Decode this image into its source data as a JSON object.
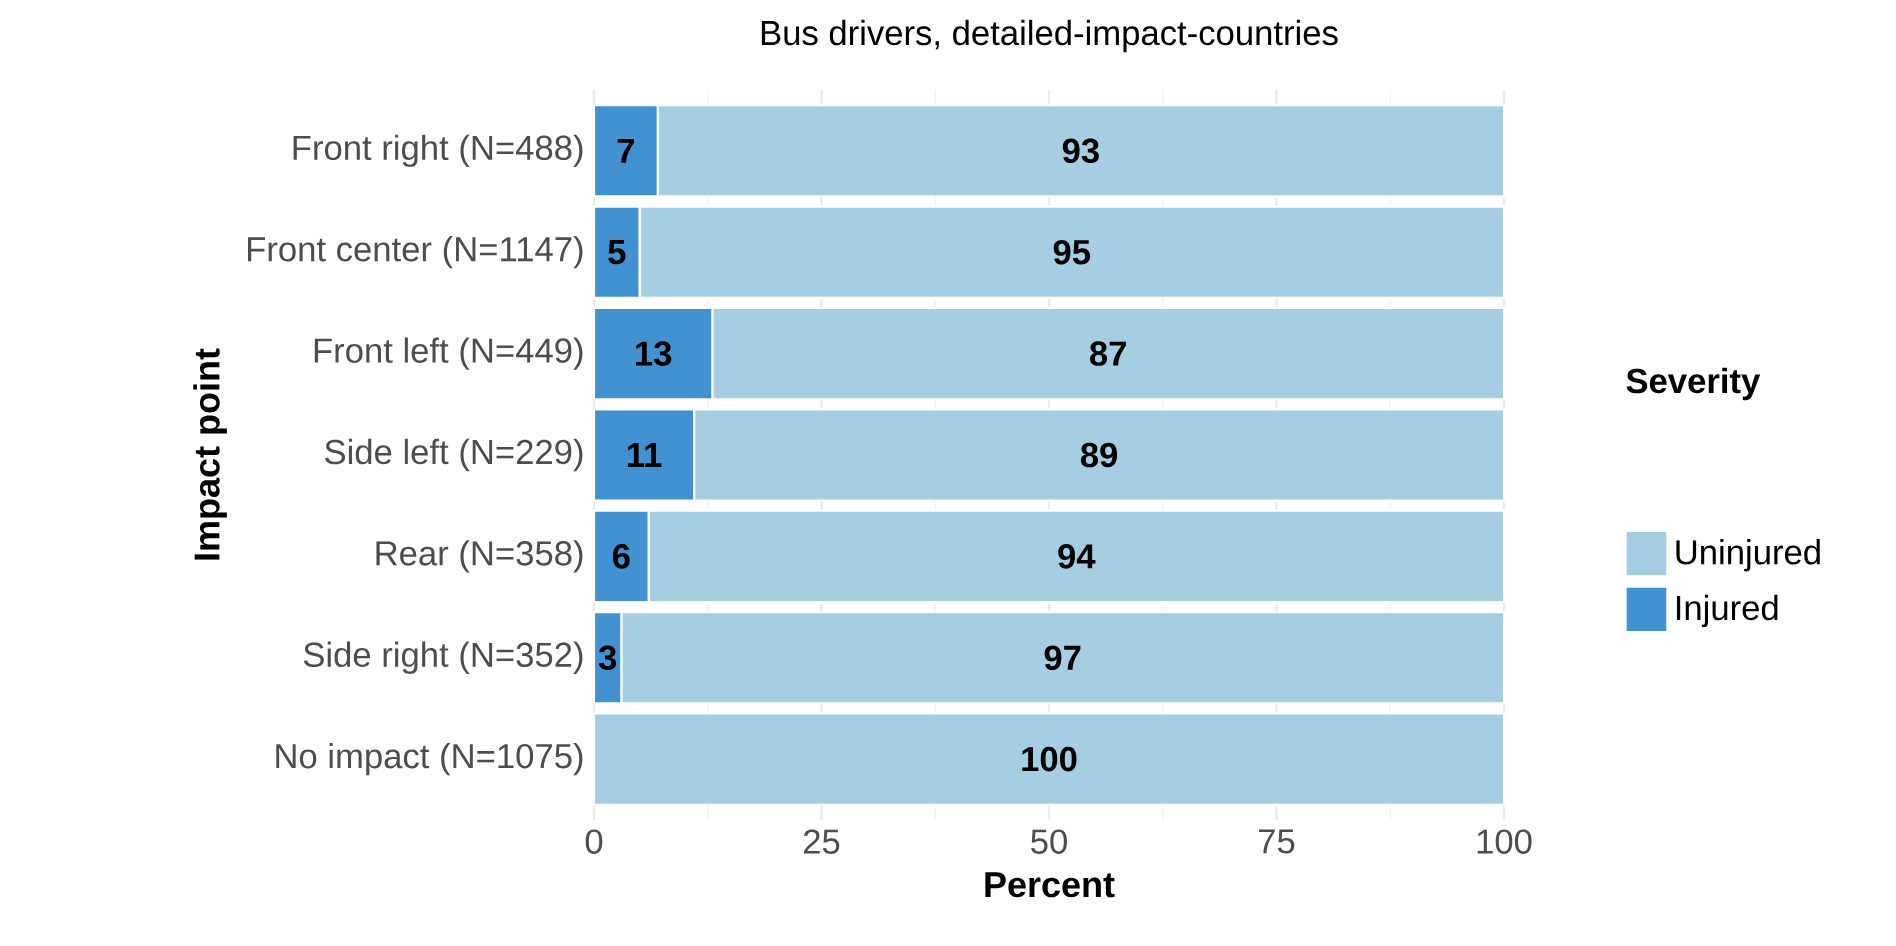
{
  "chart_data": {
    "type": "bar",
    "orientation": "horizontal",
    "stacked": true,
    "title": "Bus drivers, detailed-impact-countries",
    "xlabel": "Percent",
    "ylabel": "Impact point",
    "legend_title": "Severity",
    "legend": "right",
    "grid": true,
    "categories": [
      "Front right (N=488)",
      "Front center (N=1147)",
      "Front left (N=449)",
      "Side left (N=229)",
      "Rear (N=358)",
      "Side right (N=352)",
      "No impact (N=1075)"
    ],
    "series": [
      {
        "name": "Injured",
        "color": "#4292d2",
        "values": [
          7,
          5,
          13,
          11,
          6,
          3,
          0
        ],
        "value_labels": [
          "7",
          "5",
          "13",
          "11",
          "6",
          "3",
          null
        ]
      },
      {
        "name": "Uninjured",
        "color": "#a6cee3",
        "values": [
          93,
          95,
          87,
          89,
          94,
          97,
          100
        ],
        "value_labels": [
          "93",
          "95",
          "87",
          "89",
          "94",
          "97",
          "100"
        ]
      }
    ],
    "xlim": [
      0,
      100
    ],
    "xticks": [
      0,
      25,
      50,
      75,
      100
    ]
  }
}
